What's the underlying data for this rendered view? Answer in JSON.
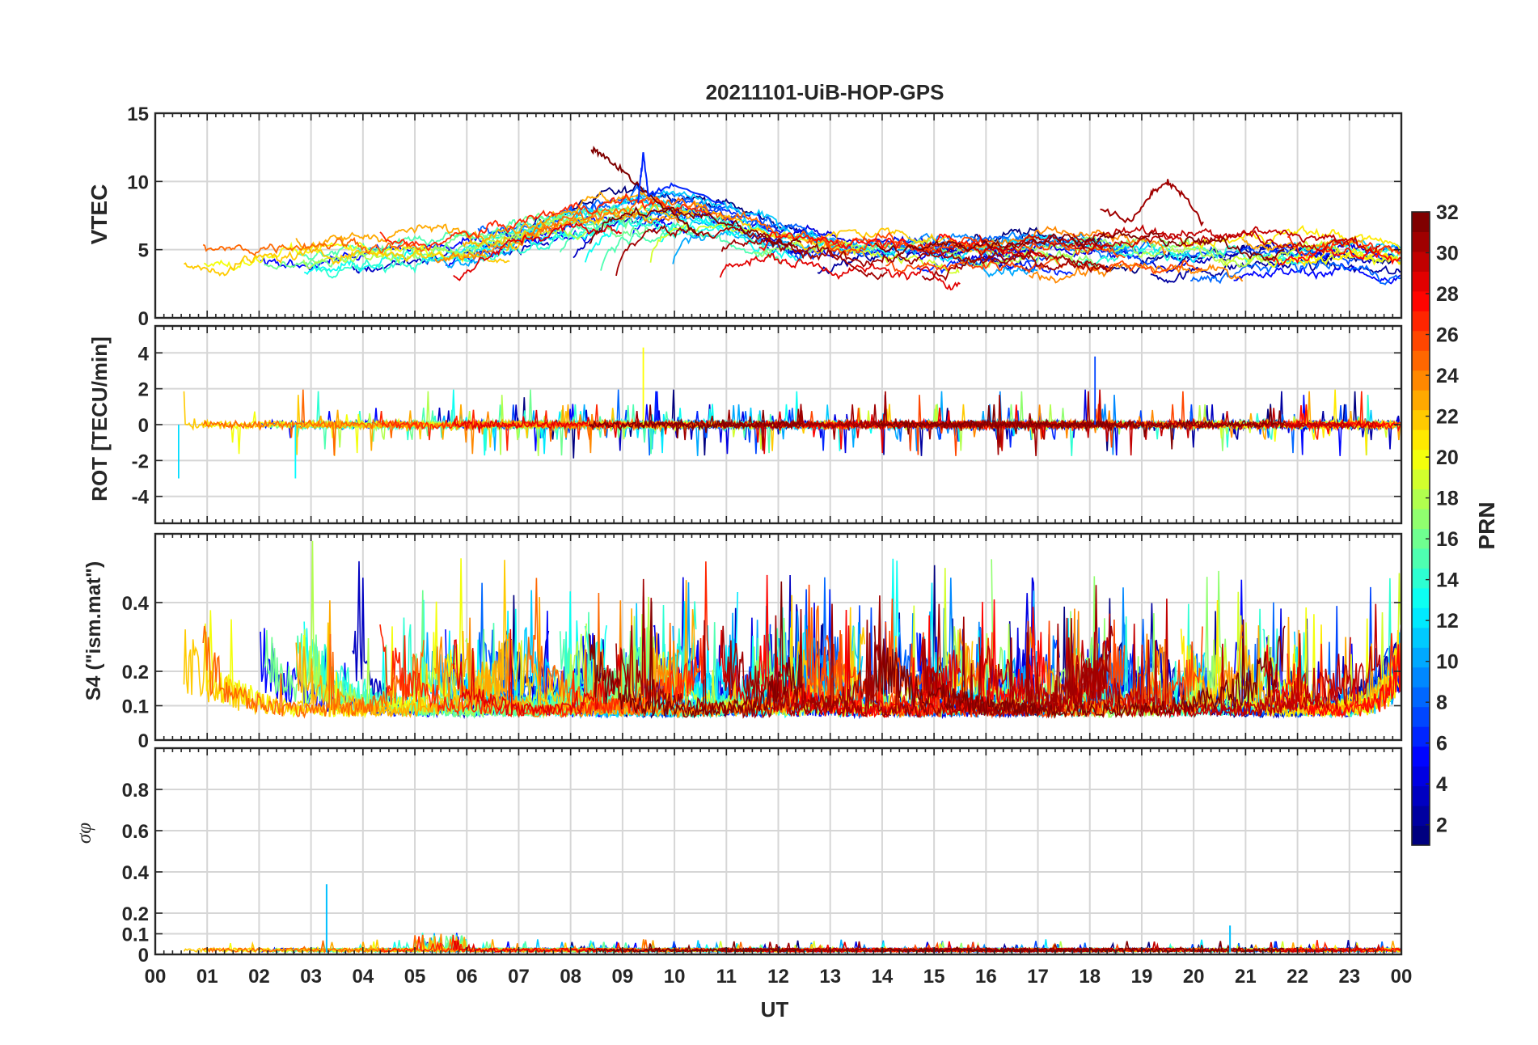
{
  "chart_data": [
    {
      "type": "line",
      "title": "20211101-UiB-HOP-GPS",
      "ylabel": "VTEC",
      "xlabel": "",
      "ylim": [
        0,
        15
      ],
      "yticks": [
        0,
        5,
        10,
        15
      ],
      "grid": true,
      "approx_series": [
        {
          "name": "PRN 32",
          "x": [
            8.4,
            8.6,
            9.0,
            9.5,
            10.0,
            10.5
          ],
          "values": [
            12.4,
            12.0,
            10.8,
            9.0,
            7.6,
            6.0
          ]
        },
        {
          "name": "PRN 31",
          "x": [
            18.2,
            18.8,
            19.2,
            19.5,
            19.8,
            20.2
          ],
          "values": [
            8.0,
            7.0,
            9.2,
            10.0,
            9.0,
            6.8
          ]
        },
        {
          "name": "PRN 6",
          "x": [
            9.3,
            9.4,
            9.5,
            10.0,
            11.0
          ],
          "values": [
            8.5,
            12.1,
            9.0,
            9.8,
            8.2
          ]
        }
      ]
    },
    {
      "type": "line",
      "ylabel": "ROT [TECU/min]",
      "ylim": [
        -5.5,
        5.5
      ],
      "yticks": [
        -4,
        -2,
        0,
        2,
        4
      ],
      "grid": true,
      "notable_peaks": [
        {
          "x": 9.4,
          "value": 4.3
        },
        {
          "x": 18.1,
          "value": 3.8
        },
        {
          "x": 0.45,
          "value": -3.0
        },
        {
          "x": 2.7,
          "value": -3.0
        }
      ]
    },
    {
      "type": "line",
      "ylabel": "S4 (\"ism.mat\")",
      "ylim": [
        0,
        0.6
      ],
      "yticks": [
        0,
        0.1,
        0.2,
        0.4
      ],
      "ytick_labels": [
        "0",
        "0.1",
        "0.2",
        "0.4"
      ],
      "grid": true
    },
    {
      "type": "line",
      "ylabel": "σφ",
      "ylim": [
        0,
        1
      ],
      "yticks": [
        0,
        0.1,
        0.2,
        0.4,
        0.6,
        0.8
      ],
      "ytick_labels": [
        "0",
        "0.1",
        "0.2",
        "0.4",
        "0.6",
        "0.8"
      ],
      "grid": true,
      "notable_peaks": [
        {
          "x": 3.3,
          "value": 0.34
        },
        {
          "x": 20.7,
          "value": 0.14
        }
      ]
    }
  ],
  "axes": {
    "x_ticks": [
      "00",
      "01",
      "02",
      "03",
      "04",
      "05",
      "06",
      "07",
      "08",
      "09",
      "10",
      "11",
      "12",
      "13",
      "14",
      "15",
      "16",
      "17",
      "18",
      "19",
      "20",
      "21",
      "22",
      "23",
      "00"
    ],
    "x_label": "UT",
    "x_range_hours": [
      0,
      24
    ]
  },
  "colorbar": {
    "label": "PRN",
    "range": [
      1,
      32
    ],
    "ticks": [
      "2",
      "4",
      "6",
      "8",
      "10",
      "12",
      "14",
      "16",
      "18",
      "20",
      "22",
      "24",
      "26",
      "28",
      "30",
      "32"
    ],
    "tick_values": [
      2,
      4,
      6,
      8,
      10,
      12,
      14,
      16,
      18,
      20,
      22,
      24,
      26,
      28,
      30,
      32
    ],
    "colormap": "jet"
  }
}
